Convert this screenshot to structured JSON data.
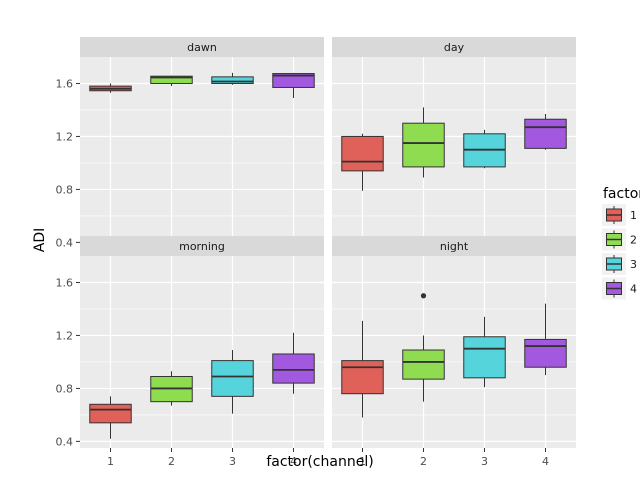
{
  "chart_data": {
    "type": "boxplot",
    "xlabel": "factor(channel)",
    "ylabel": "ADI",
    "categories": [
      "1",
      "2",
      "3",
      "4"
    ],
    "ylim": [
      0.35,
      1.8
    ],
    "yticks": [
      0.4,
      0.8,
      1.2,
      1.6
    ],
    "ytick_labels": [
      "0.4",
      "0.8",
      "1.2",
      "1.6"
    ],
    "legend": {
      "title": "factor(channel)",
      "position": "right",
      "entries": [
        {
          "label": "1",
          "color": "#e0605a"
        },
        {
          "label": "2",
          "color": "#8fdc50"
        },
        {
          "label": "3",
          "color": "#55d4dc"
        },
        {
          "label": "4",
          "color": "#a259e0"
        }
      ]
    },
    "panels": [
      {
        "name": "dawn",
        "boxes": [
          {
            "category": "1",
            "whisker_low": 1.53,
            "q1": 1.545,
            "median": 1.56,
            "q3": 1.58,
            "whisker_high": 1.6,
            "outliers": []
          },
          {
            "category": "2",
            "whisker_low": 1.58,
            "q1": 1.6,
            "median": 1.645,
            "q3": 1.655,
            "whisker_high": 1.66,
            "outliers": []
          },
          {
            "category": "3",
            "whisker_low": 1.59,
            "q1": 1.6,
            "median": 1.615,
            "q3": 1.65,
            "whisker_high": 1.68,
            "outliers": []
          },
          {
            "category": "4",
            "whisker_low": 1.49,
            "q1": 1.57,
            "median": 1.66,
            "q3": 1.675,
            "whisker_high": 1.68,
            "outliers": []
          }
        ]
      },
      {
        "name": "day",
        "boxes": [
          {
            "category": "1",
            "whisker_low": 0.79,
            "q1": 0.94,
            "median": 1.01,
            "q3": 1.2,
            "whisker_high": 1.22,
            "outliers": []
          },
          {
            "category": "2",
            "whisker_low": 0.89,
            "q1": 0.97,
            "median": 1.15,
            "q3": 1.3,
            "whisker_high": 1.42,
            "outliers": []
          },
          {
            "category": "3",
            "whisker_low": 0.96,
            "q1": 0.97,
            "median": 1.1,
            "q3": 1.22,
            "whisker_high": 1.25,
            "outliers": []
          },
          {
            "category": "4",
            "whisker_low": 1.1,
            "q1": 1.11,
            "median": 1.27,
            "q3": 1.33,
            "whisker_high": 1.37,
            "outliers": []
          }
        ]
      },
      {
        "name": "morning",
        "boxes": [
          {
            "category": "1",
            "whisker_low": 0.42,
            "q1": 0.54,
            "median": 0.64,
            "q3": 0.68,
            "whisker_high": 0.74,
            "outliers": []
          },
          {
            "category": "2",
            "whisker_low": 0.67,
            "q1": 0.7,
            "median": 0.8,
            "q3": 0.89,
            "whisker_high": 0.93,
            "outliers": []
          },
          {
            "category": "3",
            "whisker_low": 0.61,
            "q1": 0.74,
            "median": 0.89,
            "q3": 1.01,
            "whisker_high": 1.09,
            "outliers": []
          },
          {
            "category": "4",
            "whisker_low": 0.76,
            "q1": 0.84,
            "median": 0.94,
            "q3": 1.06,
            "whisker_high": 1.22,
            "outliers": []
          }
        ]
      },
      {
        "name": "night",
        "boxes": [
          {
            "category": "1",
            "whisker_low": 0.58,
            "q1": 0.76,
            "median": 0.96,
            "q3": 1.01,
            "whisker_high": 1.31,
            "outliers": []
          },
          {
            "category": "2",
            "whisker_low": 0.7,
            "q1": 0.87,
            "median": 1.0,
            "q3": 1.09,
            "whisker_high": 1.2,
            "outliers": [
              1.5
            ]
          },
          {
            "category": "3",
            "whisker_low": 0.81,
            "q1": 0.88,
            "median": 1.1,
            "q3": 1.19,
            "whisker_high": 1.34,
            "outliers": []
          },
          {
            "category": "4",
            "whisker_low": 0.9,
            "q1": 0.96,
            "median": 1.12,
            "q3": 1.17,
            "whisker_high": 1.44,
            "outliers": []
          }
        ]
      }
    ]
  }
}
